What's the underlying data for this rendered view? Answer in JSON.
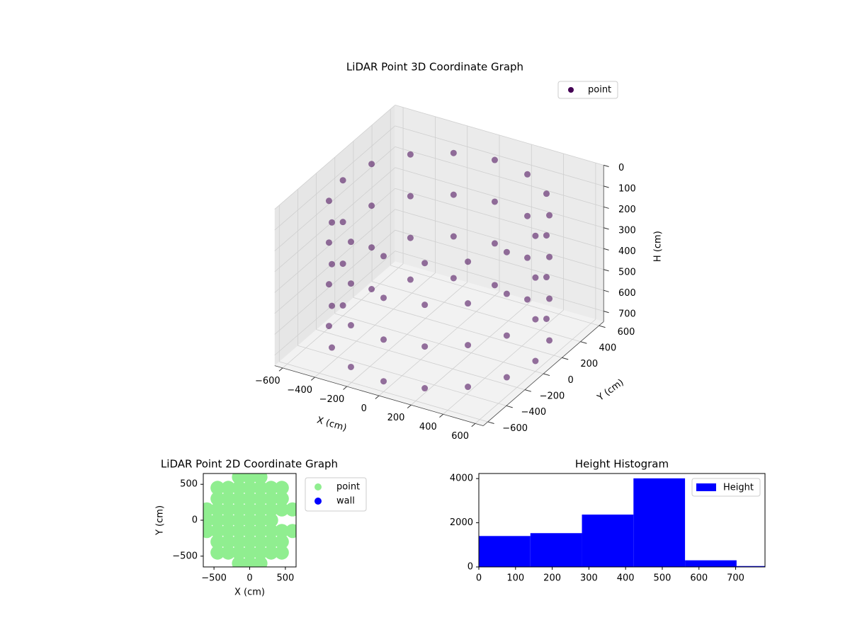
{
  "chart_data": [
    {
      "type": "scatter3d",
      "title": "LiDAR Point 3D Coordinate Graph",
      "xlabel": "X (cm)",
      "ylabel": "Y (cm)",
      "zlabel": "H (cm)",
      "xlim": [
        -650,
        650
      ],
      "ylim": [
        -650,
        650
      ],
      "zlim": [
        750,
        0
      ],
      "xticks": [
        {
          "value": -600,
          "label": "−600"
        },
        {
          "value": -400,
          "label": "−400"
        },
        {
          "value": -200,
          "label": "−200"
        },
        0,
        200,
        400,
        600
      ],
      "yticks": [
        {
          "value": -600,
          "label": "−600"
        },
        {
          "value": -400,
          "label": "−400"
        },
        {
          "value": -200,
          "label": "−200"
        },
        0,
        200,
        400,
        600
      ],
      "zticks": [
        0,
        100,
        200,
        300,
        400,
        500,
        600,
        700
      ],
      "grid": true,
      "legend": "upper right",
      "series": [
        {
          "name": "point",
          "color": "#440154",
          "x": [
            600,
            554,
            424,
            230,
            0,
            -230,
            -424,
            -554,
            -600,
            -554,
            -424,
            -230,
            0,
            230,
            424,
            554,
            600,
            554,
            424,
            230,
            0,
            -230,
            -424,
            -554,
            -600,
            -554,
            -424,
            -230,
            0,
            230,
            424,
            554,
            600,
            554,
            424,
            230,
            0,
            -230,
            -424,
            -554,
            -600,
            -554,
            -424,
            -230,
            0,
            230,
            424,
            554,
            600,
            554,
            424,
            230,
            0,
            -230,
            -424,
            -554,
            -600,
            -554,
            -424,
            -230,
            0,
            230,
            424,
            554
          ],
          "y": [
            0,
            230,
            424,
            554,
            600,
            554,
            424,
            230,
            0,
            -230,
            -424,
            -554,
            -600,
            -554,
            -424,
            -230,
            0,
            230,
            424,
            554,
            600,
            554,
            424,
            230,
            0,
            -230,
            -424,
            -554,
            -600,
            -554,
            -424,
            -230,
            0,
            230,
            424,
            554,
            600,
            554,
            424,
            230,
            0,
            -230,
            -424,
            -554,
            -600,
            -554,
            -424,
            -230,
            0,
            230,
            424,
            554,
            600,
            554,
            424,
            230,
            0,
            -230,
            -424,
            -554,
            -600,
            -554,
            -424,
            -230
          ],
          "z": [
            100,
            100,
            100,
            100,
            100,
            100,
            100,
            100,
            100,
            100,
            100,
            100,
            100,
            100,
            100,
            100,
            300,
            300,
            300,
            300,
            300,
            300,
            300,
            300,
            300,
            300,
            300,
            300,
            300,
            300,
            300,
            300,
            500,
            500,
            500,
            500,
            500,
            500,
            500,
            500,
            500,
            500,
            500,
            500,
            500,
            500,
            500,
            500,
            700,
            700,
            700,
            700,
            700,
            700,
            700,
            700,
            700,
            700,
            700,
            700,
            700,
            700,
            700,
            700
          ]
        }
      ]
    },
    {
      "type": "scatter",
      "title": "LiDAR Point 2D Coordinate Graph",
      "xlabel": "X (cm)",
      "ylabel": "Y (cm)",
      "xlim": [
        -650,
        650
      ],
      "ylim": [
        -650,
        650
      ],
      "xticks": [
        {
          "value": -500,
          "label": "−500"
        },
        0,
        500
      ],
      "yticks": [
        {
          "value": -500,
          "label": "−500"
        },
        0,
        500
      ],
      "legend": "outside right",
      "series": [
        {
          "name": "point",
          "color": "#90ee90",
          "x": [
            -600,
            -600,
            -600,
            -450,
            -450,
            -450,
            -450,
            -450,
            -450,
            -450,
            -300,
            -300,
            -300,
            -300,
            -300,
            -300,
            -300,
            -150,
            -150,
            -150,
            -150,
            -150,
            -150,
            -150,
            -150,
            -150,
            0,
            0,
            0,
            0,
            0,
            0,
            0,
            0,
            0,
            150,
            150,
            150,
            150,
            150,
            150,
            150,
            150,
            150,
            300,
            300,
            300,
            300,
            300,
            300,
            300,
            450,
            450,
            450,
            450,
            450,
            450,
            600,
            600
          ],
          "y": [
            -150,
            0,
            150,
            -450,
            -300,
            -150,
            0,
            150,
            300,
            450,
            -450,
            -300,
            -150,
            0,
            150,
            300,
            450,
            -600,
            -450,
            -300,
            -150,
            0,
            150,
            300,
            450,
            600,
            -600,
            -450,
            -300,
            -150,
            0,
            150,
            300,
            450,
            600,
            -600,
            -450,
            -300,
            -150,
            0,
            150,
            300,
            450,
            600,
            -450,
            -300,
            -150,
            0,
            150,
            300,
            450,
            -450,
            -300,
            -150,
            150,
            300,
            450,
            -150,
            150
          ]
        },
        {
          "name": "wall",
          "color": "#0000ff",
          "x": [],
          "y": []
        }
      ]
    },
    {
      "type": "histogram",
      "title": "Height Histogram",
      "bins": [
        0,
        140.5,
        281,
        421.5,
        562,
        702.5,
        843
      ],
      "values": [
        1400,
        1530,
        2370,
        4010,
        300,
        40
      ],
      "xlim": [
        0,
        780
      ],
      "ylim": [
        0,
        4230
      ],
      "xticks": [
        0,
        100,
        200,
        300,
        400,
        500,
        600,
        700
      ],
      "yticks": [
        0,
        2000,
        4000
      ],
      "series_name": "Height",
      "color": "#0000ff",
      "legend": "upper right"
    }
  ]
}
